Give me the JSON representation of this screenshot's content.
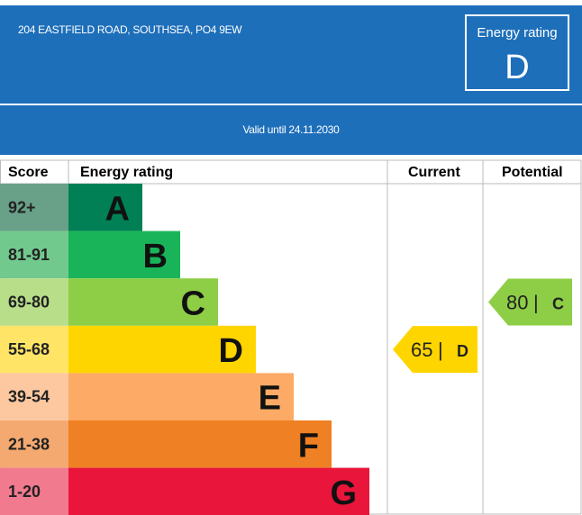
{
  "header": {
    "address": "204 EASTFIELD ROAD, SOUTHSEA, PO4 9EW",
    "rating_title": "Energy rating",
    "rating_letter": "D",
    "valid_until": "Valid until 24.11.2030"
  },
  "table_headers": {
    "score": "Score",
    "energy_rating": "Energy rating",
    "current": "Current",
    "potential": "Potential"
  },
  "chart_data": {
    "type": "bar",
    "bands": [
      {
        "letter": "A",
        "score": "92+",
        "color": "#008054",
        "score_color": "#68a088"
      },
      {
        "letter": "B",
        "score": "81-91",
        "color": "#19b459",
        "score_color": "#72c98d"
      },
      {
        "letter": "C",
        "score": "69-80",
        "color": "#8dce46",
        "score_color": "#b8de8a"
      },
      {
        "letter": "D",
        "score": "55-68",
        "color": "#ffd500",
        "score_color": "#ffe466"
      },
      {
        "letter": "E",
        "score": "39-54",
        "color": "#fcaa65",
        "score_color": "#fdc8a0"
      },
      {
        "letter": "F",
        "score": "21-38",
        "color": "#ef8023",
        "score_color": "#f4a970"
      },
      {
        "letter": "G",
        "score": "1-20",
        "color": "#e9153b",
        "score_color": "#f27a8e"
      }
    ],
    "current": {
      "value": 65,
      "letter": "D",
      "color": "#ffd500"
    },
    "potential": {
      "value": 80,
      "letter": "C",
      "color": "#8dce46"
    }
  }
}
